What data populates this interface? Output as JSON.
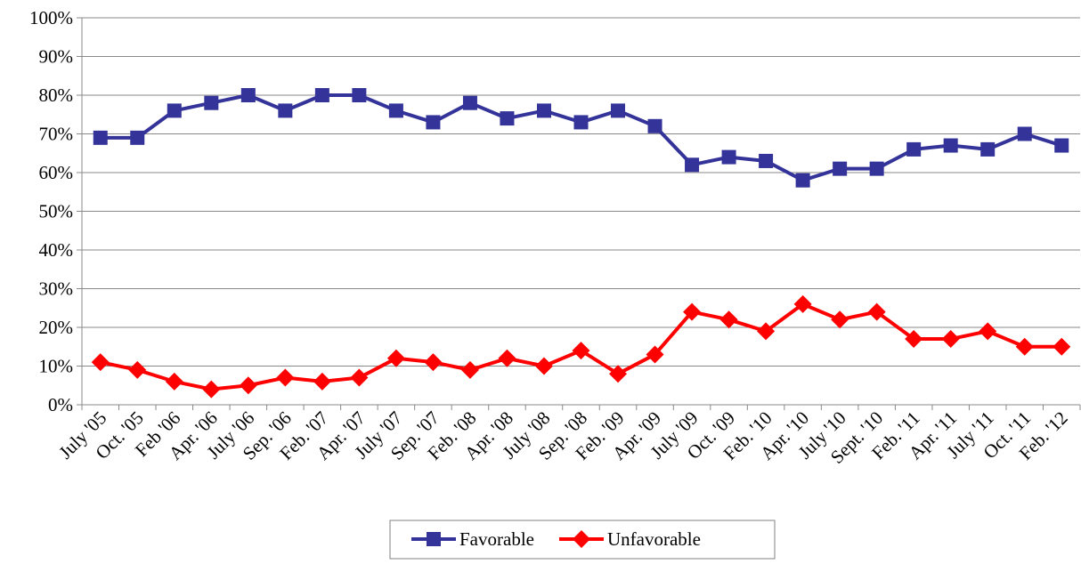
{
  "chart_data": {
    "type": "line",
    "categories": [
      "July '05",
      "Oct. '05",
      "Feb '06",
      "Apr. '06",
      "July '06",
      "Sep. '06",
      "Feb. '07",
      "Apr. '07",
      "July '07",
      "Sep. '07",
      "Feb. '08",
      "Apr. '08",
      "July '08",
      "Sep. '08",
      "Feb. '09",
      "Apr. '09",
      "July '09",
      "Oct. '09",
      "Feb. '10",
      "Apr. '10",
      "July '10",
      "Sept. '10",
      "Feb. '11",
      "Apr. '11",
      "July '11",
      "Oct. '11",
      "Feb. '12"
    ],
    "series": [
      {
        "name": "Favorable",
        "color": "#333399",
        "marker": "square",
        "values": [
          69,
          69,
          76,
          78,
          80,
          76,
          80,
          80,
          76,
          73,
          78,
          74,
          76,
          73,
          76,
          72,
          62,
          64,
          63,
          58,
          61,
          61,
          66,
          67,
          66,
          70,
          67
        ]
      },
      {
        "name": "Unfavorable",
        "color": "#ff0000",
        "marker": "diamond",
        "values": [
          11,
          9,
          6,
          4,
          5,
          7,
          6,
          7,
          12,
          11,
          9,
          12,
          10,
          14,
          8,
          13,
          24,
          22,
          19,
          26,
          22,
          24,
          17,
          17,
          19,
          15,
          15
        ]
      }
    ],
    "ylim": [
      0,
      100
    ],
    "yticks": [
      {
        "value": 0,
        "label": "0%"
      },
      {
        "value": 10,
        "label": "10%"
      },
      {
        "value": 20,
        "label": "20%"
      },
      {
        "value": 30,
        "label": "30%"
      },
      {
        "value": 40,
        "label": "40%"
      },
      {
        "value": 50,
        "label": "50%"
      },
      {
        "value": 60,
        "label": "60%"
      },
      {
        "value": 70,
        "label": "70%"
      },
      {
        "value": 80,
        "label": "80%"
      },
      {
        "value": 90,
        "label": "90%"
      },
      {
        "value": 100,
        "label": "100%"
      }
    ],
    "grid": true,
    "legend": "bottom"
  }
}
